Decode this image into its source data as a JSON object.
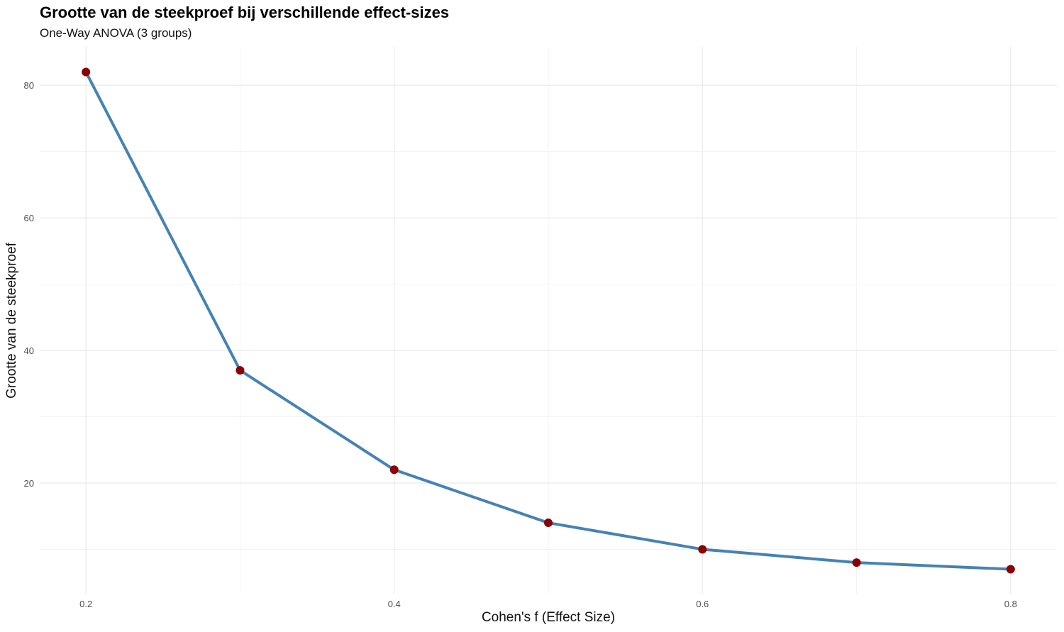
{
  "chart_data": {
    "type": "line",
    "title": "Grootte van de steekproef bij verschillende effect-sizes",
    "subtitle": "One-Way ANOVA (3 groups)",
    "xlabel": "Cohen's f (Effect Size)",
    "ylabel": "Grootte van de steekproef",
    "x": [
      0.2,
      0.3,
      0.4,
      0.5,
      0.6,
      0.7,
      0.8
    ],
    "values": [
      82,
      37,
      22,
      14,
      10,
      8,
      7
    ],
    "xlim": [
      0.17,
      0.83
    ],
    "ylim": [
      3.2,
      85.8
    ],
    "xticks": [
      "0.2",
      "0.4",
      "0.6",
      "0.8"
    ],
    "yticks": [
      "20",
      "40",
      "60",
      "80"
    ],
    "grid": true,
    "line_color": "#4682B4",
    "point_color": "#8B0000"
  }
}
